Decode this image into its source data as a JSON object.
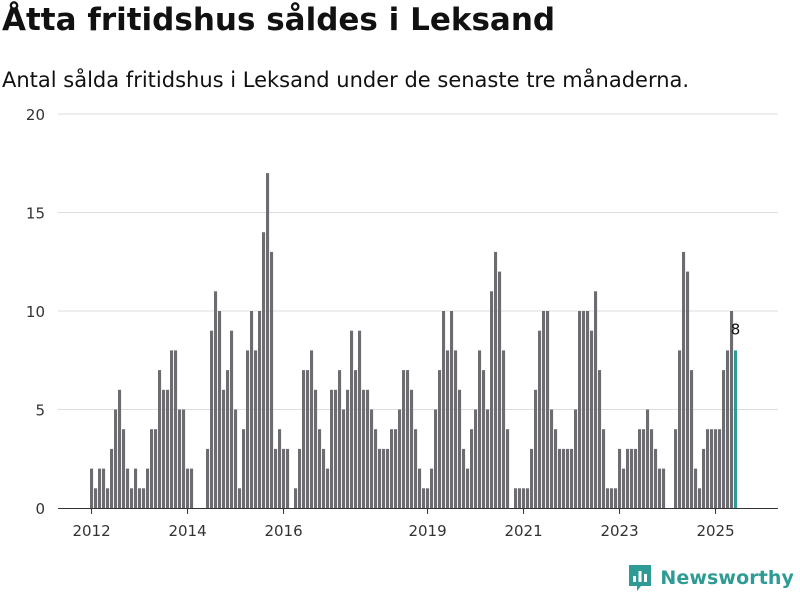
{
  "title": "Åtta fritidshus såldes i Leksand",
  "subtitle": "Antal sålda fritidshus i Leksand under de senaste tre månaderna.",
  "brand": {
    "name": "Newsworthy",
    "icon": "newsworthy-logo-icon"
  },
  "colors": {
    "bar": "#6d6c70",
    "highlight": "#2e9b94",
    "grid": "#dddddd",
    "axis": "#333333"
  },
  "chart_data": {
    "type": "bar",
    "title": "Åtta fritidshus såldes i Leksand",
    "xlabel": "",
    "ylabel": "",
    "ylim": [
      0,
      20
    ],
    "yticks": [
      0,
      5,
      10,
      15,
      20
    ],
    "x_start": "2012-01",
    "x_ticks": [
      {
        "label": "2012",
        "index": 0
      },
      {
        "label": "2014",
        "index": 24
      },
      {
        "label": "2016",
        "index": 48
      },
      {
        "label": "2019",
        "index": 84
      },
      {
        "label": "2021",
        "index": 108
      },
      {
        "label": "2023",
        "index": 132
      },
      {
        "label": "2025",
        "index": 156
      }
    ],
    "values": [
      2,
      1,
      2,
      2,
      1,
      3,
      5,
      6,
      4,
      2,
      1,
      2,
      1,
      1,
      2,
      4,
      4,
      7,
      6,
      6,
      8,
      8,
      5,
      5,
      2,
      2,
      0,
      0,
      0,
      3,
      9,
      11,
      10,
      6,
      7,
      9,
      5,
      1,
      4,
      8,
      10,
      8,
      10,
      14,
      17,
      13,
      3,
      4,
      3,
      3,
      0,
      1,
      3,
      7,
      7,
      8,
      6,
      4,
      3,
      2,
      6,
      6,
      7,
      5,
      6,
      9,
      7,
      9,
      6,
      6,
      5,
      4,
      3,
      3,
      3,
      4,
      4,
      5,
      7,
      7,
      6,
      4,
      2,
      1,
      1,
      2,
      5,
      7,
      10,
      8,
      10,
      8,
      6,
      3,
      2,
      4,
      5,
      8,
      7,
      5,
      11,
      13,
      12,
      8,
      4,
      0,
      1,
      1,
      1,
      1,
      3,
      6,
      9,
      10,
      10,
      5,
      4,
      3,
      3,
      3,
      3,
      5,
      10,
      10,
      10,
      9,
      11,
      7,
      4,
      1,
      1,
      1,
      3,
      2,
      3,
      3,
      3,
      4,
      4,
      5,
      4,
      3,
      2,
      2,
      0,
      0,
      4,
      8,
      13,
      12,
      7,
      2,
      1,
      3,
      4,
      4,
      4,
      4,
      7,
      8,
      10,
      8
    ],
    "highlight_index": 161,
    "highlight_label": "8"
  }
}
